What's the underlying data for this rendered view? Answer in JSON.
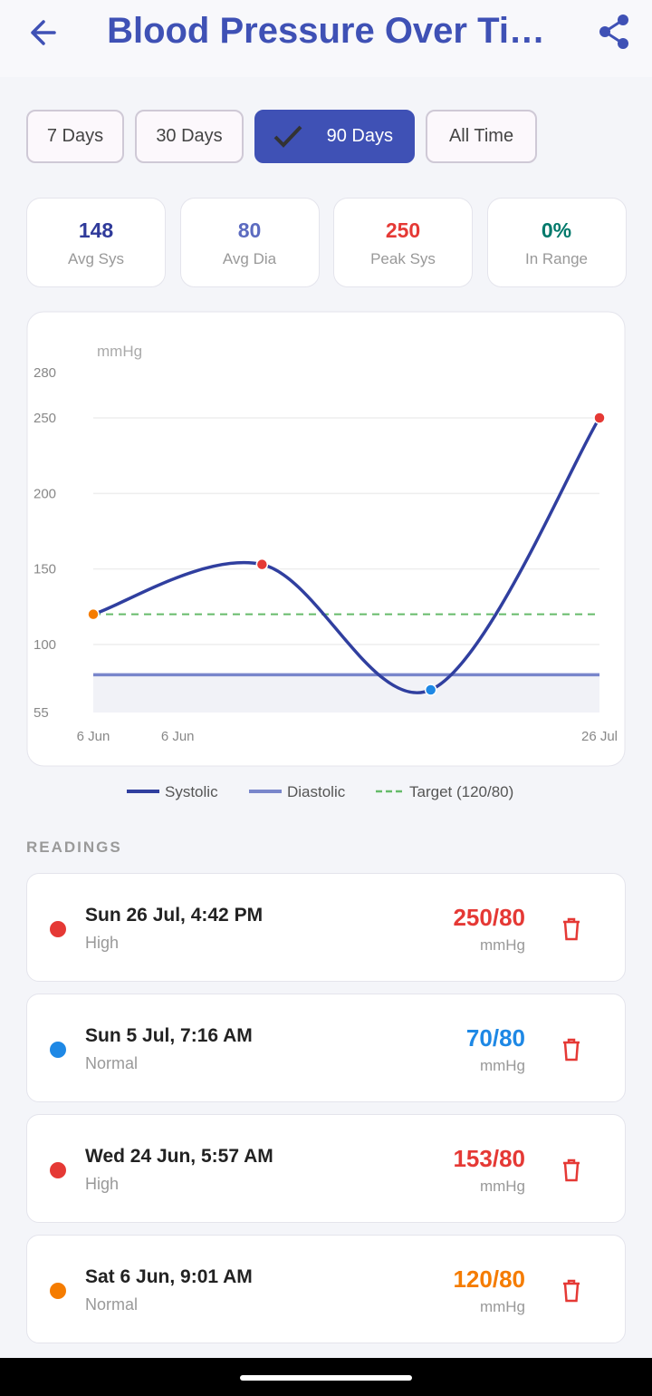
{
  "header": {
    "title": "Blood Pressure Over Ti…"
  },
  "filters": {
    "options": [
      "7 Days",
      "30 Days",
      "90 Days",
      "All Time"
    ],
    "selected": 2
  },
  "stats": [
    {
      "value": 148,
      "label": "Avg Sys",
      "color": "#2f3a9a"
    },
    {
      "value": 80,
      "label": "Avg Dia",
      "color": "#5c6bc0"
    },
    {
      "value": 250,
      "label": "Peak Sys",
      "color": "#e53935"
    },
    {
      "value": "0%",
      "label": "In Range",
      "color": "#00796b"
    }
  ],
  "chart_data": {
    "type": "line",
    "y_label": "mmHg",
    "x": [
      0,
      1,
      2,
      3
    ],
    "xlim": [
      0,
      3
    ],
    "xticks": [
      {
        "value": 0,
        "label": "6 Jun"
      },
      {
        "value": 0.5,
        "label": "6 Jun"
      },
      {
        "value": 3,
        "label": "26 Jul"
      }
    ],
    "ylim": [
      55,
      280
    ],
    "yticks": [
      55,
      100,
      150,
      200,
      250,
      280
    ],
    "grid": true,
    "series": [
      {
        "name": "Systolic",
        "color": "#303f9f",
        "values": [
          120,
          153,
          70,
          250
        ],
        "point_colors": [
          "#f57c00",
          "#e53935",
          "#1e88e5",
          "#e53935"
        ]
      },
      {
        "name": "Diastolic",
        "color": "#7986cb",
        "values": [
          80,
          80,
          80,
          80
        ]
      }
    ],
    "target": {
      "name": "Target (120/80)",
      "value": 120,
      "color": "#66bb6a"
    }
  },
  "readings_title": "READINGS",
  "readings": [
    {
      "date": "Sun 26 Jul, 4:42 PM",
      "status": "High",
      "value": "250/80",
      "unit": "mmHg",
      "color": "#e53935"
    },
    {
      "date": "Sun 5 Jul, 7:16 AM",
      "status": "Normal",
      "value": "70/80",
      "unit": "mmHg",
      "color": "#1e88e5"
    },
    {
      "date": "Wed 24 Jun, 5:57 AM",
      "status": "High",
      "value": "153/80",
      "unit": "mmHg",
      "color": "#e53935"
    },
    {
      "date": "Sat 6 Jun, 9:01 AM",
      "status": "Normal",
      "value": "120/80",
      "unit": "mmHg",
      "color": "#f57c00"
    }
  ]
}
